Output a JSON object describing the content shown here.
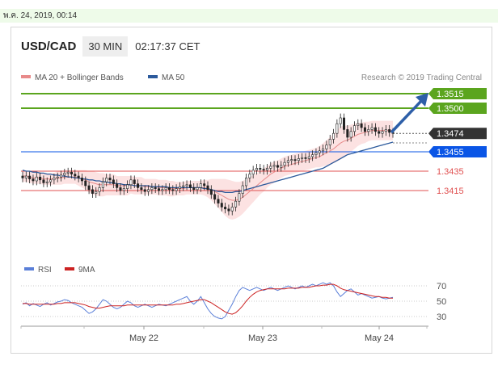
{
  "date_stamp": "พ.ค. 24, 2019, 00:14",
  "header": {
    "pair": "USD/CAD",
    "timeframe": "30 MIN",
    "time": "02:17:37 CET"
  },
  "credit": "Research © 2019 Trading Central",
  "colors": {
    "support": "#0a55e6",
    "resistance": "#5ba51e",
    "level": "#e05050",
    "last": "#333333",
    "ma20": "#e88a8a",
    "ma50": "#2c5a9c",
    "rsi": "#5a7fd8",
    "rsi_ma": "#cc2222",
    "arrow": "#2e5fa8"
  },
  "chart_data": [
    {
      "type": "candlestick",
      "title": "USD/CAD",
      "timeframe": "30 MIN",
      "legend": [
        {
          "name": "MA 20 + Bollinger Bands",
          "color": "#e88a8a"
        },
        {
          "name": "MA 50",
          "color": "#2c5a9c"
        }
      ],
      "x_ticks": [
        "May 22",
        "May 23",
        "May 24"
      ],
      "levels": [
        {
          "value": 1.3515,
          "label": "1.3515",
          "style": "resistance"
        },
        {
          "value": 1.35,
          "label": "1.3500",
          "style": "resistance"
        },
        {
          "value": 1.3474,
          "label": "1.3474",
          "style": "last"
        },
        {
          "value": 1.3455,
          "label": "1.3455",
          "style": "support"
        },
        {
          "value": 1.3435,
          "label": "1.3435",
          "style": "level"
        },
        {
          "value": 1.3415,
          "label": "1.3415",
          "style": "level"
        }
      ],
      "closes": [
        1.3428,
        1.343,
        1.3427,
        1.3425,
        1.3429,
        1.3426,
        1.3423,
        1.3424,
        1.3426,
        1.3428,
        1.3429,
        1.3431,
        1.3433,
        1.3434,
        1.3432,
        1.343,
        1.3428,
        1.3425,
        1.342,
        1.3416,
        1.3412,
        1.3414,
        1.3418,
        1.3424,
        1.3428,
        1.3426,
        1.3422,
        1.3418,
        1.3415,
        1.3417,
        1.3421,
        1.3426,
        1.3422,
        1.3418,
        1.3416,
        1.3414,
        1.3416,
        1.3418,
        1.3417,
        1.3415,
        1.3416,
        1.3418,
        1.3416,
        1.3415,
        1.3417,
        1.3419,
        1.342,
        1.3421,
        1.3418,
        1.3416,
        1.3418,
        1.3422,
        1.342,
        1.3416,
        1.3411,
        1.3406,
        1.3402,
        1.3398,
        1.3396,
        1.3394,
        1.3398,
        1.3404,
        1.3412,
        1.342,
        1.3428,
        1.3432,
        1.3436,
        1.3438,
        1.3437,
        1.3436,
        1.3438,
        1.344,
        1.3441,
        1.3439,
        1.3441,
        1.3444,
        1.3446,
        1.3447,
        1.3446,
        1.3448,
        1.3449,
        1.3448,
        1.345,
        1.3452,
        1.3454,
        1.3456,
        1.3458,
        1.3462,
        1.3468,
        1.3474,
        1.3484,
        1.349,
        1.3478,
        1.347,
        1.3476,
        1.3482,
        1.3484,
        1.348,
        1.3476,
        1.3478,
        1.348,
        1.3476,
        1.3474,
        1.3476,
        1.3478,
        1.3475,
        1.3474
      ],
      "ma20": [
        1.343,
        1.343,
        1.3429,
        1.3428,
        1.3428,
        1.3428,
        1.3427,
        1.3427,
        1.3427,
        1.3427,
        1.3428,
        1.3428,
        1.3429,
        1.3429,
        1.3429,
        1.3429,
        1.3428,
        1.3427,
        1.3426,
        1.3424,
        1.3423,
        1.3422,
        1.3421,
        1.3421,
        1.3421,
        1.3421,
        1.3421,
        1.342,
        1.342,
        1.342,
        1.342,
        1.3421,
        1.342,
        1.342,
        1.342,
        1.3419,
        1.3419,
        1.3419,
        1.3419,
        1.3418,
        1.3418,
        1.3418,
        1.3417,
        1.3417,
        1.3417,
        1.3417,
        1.3417,
        1.3418,
        1.3418,
        1.3418,
        1.3418,
        1.3418,
        1.3418,
        1.3417,
        1.3416,
        1.3414,
        1.3412,
        1.341,
        1.3408,
        1.3406,
        1.3405,
        1.3405,
        1.3406,
        1.3408,
        1.3411,
        1.3414,
        1.3417,
        1.342,
        1.3423,
        1.3426,
        1.3429,
        1.3432,
        1.3434,
        1.3436,
        1.3438,
        1.344,
        1.3441,
        1.3442,
        1.3443,
        1.3444,
        1.3445,
        1.3446,
        1.3447,
        1.3448,
        1.3449,
        1.345,
        1.3452,
        1.3454,
        1.3456,
        1.3458,
        1.3461,
        1.3464,
        1.3466,
        1.3467,
        1.3469,
        1.3471,
        1.3473,
        1.3474,
        1.3475,
        1.3476,
        1.3477,
        1.3477,
        1.3477,
        1.3477,
        1.3477,
        1.3477,
        1.3477
      ],
      "band_width": [
        0.0006,
        0.0006,
        0.0006,
        0.0006,
        0.0006,
        0.0006,
        0.0006,
        0.0006,
        0.0006,
        0.0006,
        0.0007,
        0.0007,
        0.0007,
        0.0007,
        0.0007,
        0.0007,
        0.0008,
        0.0009,
        0.001,
        0.0011,
        0.0012,
        0.0012,
        0.0012,
        0.0012,
        0.0011,
        0.0011,
        0.0011,
        0.001,
        0.001,
        0.001,
        0.001,
        0.0009,
        0.0009,
        0.0009,
        0.0009,
        0.0008,
        0.0008,
        0.0008,
        0.0008,
        0.0008,
        0.0008,
        0.0008,
        0.0008,
        0.0008,
        0.0007,
        0.0007,
        0.0007,
        0.0007,
        0.0007,
        0.0007,
        0.0007,
        0.0007,
        0.0008,
        0.0009,
        0.0011,
        0.0013,
        0.0015,
        0.0017,
        0.0019,
        0.002,
        0.002,
        0.0019,
        0.0018,
        0.0017,
        0.0016,
        0.0015,
        0.0014,
        0.0013,
        0.0012,
        0.0012,
        0.0011,
        0.0011,
        0.0011,
        0.001,
        0.001,
        0.001,
        0.001,
        0.001,
        0.001,
        0.001,
        0.001,
        0.001,
        0.001,
        0.001,
        0.001,
        0.0011,
        0.0012,
        0.0013,
        0.0014,
        0.0015,
        0.0016,
        0.0017,
        0.0016,
        0.0015,
        0.0014,
        0.0013,
        0.0012,
        0.0011,
        0.0011,
        0.001,
        0.001,
        0.001,
        0.001,
        0.001,
        0.001,
        0.001,
        0.001
      ],
      "ma50": [
        1.3436,
        1.3435,
        1.3435,
        1.3434,
        1.3434,
        1.3433,
        1.3433,
        1.3432,
        1.3432,
        1.3431,
        1.3431,
        1.343,
        1.343,
        1.3429,
        1.3429,
        1.3428,
        1.3428,
        1.3427,
        1.3427,
        1.3426,
        1.3426,
        1.3425,
        1.3425,
        1.3424,
        1.3424,
        1.3423,
        1.3423,
        1.3422,
        1.3422,
        1.3421,
        1.3421,
        1.3421,
        1.342,
        1.342,
        1.342,
        1.342,
        1.342,
        1.3419,
        1.3419,
        1.3419,
        1.3419,
        1.3419,
        1.3418,
        1.3418,
        1.3418,
        1.3418,
        1.3418,
        1.3418,
        1.3418,
        1.3418,
        1.3418,
        1.3418,
        1.3417,
        1.3417,
        1.3416,
        1.3415,
        1.3414,
        1.3414,
        1.3413,
        1.3413,
        1.3413,
        1.3414,
        1.3414,
        1.3415,
        1.3416,
        1.3417,
        1.3418,
        1.3419,
        1.342,
        1.3421,
        1.3422,
        1.3423,
        1.3424,
        1.3425,
        1.3426,
        1.3427,
        1.3428,
        1.3429,
        1.343,
        1.3431,
        1.3432,
        1.3433,
        1.3434,
        1.3435,
        1.3436,
        1.3437,
        1.3438,
        1.344,
        1.3442,
        1.3444,
        1.3446,
        1.3448,
        1.345,
        1.3452,
        1.3453,
        1.3454,
        1.3455,
        1.3456,
        1.3457,
        1.3458,
        1.3459,
        1.346,
        1.3461,
        1.3462,
        1.3463,
        1.3464,
        1.3465
      ]
    },
    {
      "type": "line",
      "legend": [
        {
          "name": "RSI",
          "color": "#5a7fd8"
        },
        {
          "name": "9MA",
          "color": "#cc2222"
        }
      ],
      "y_ticks": [
        70,
        50,
        30
      ],
      "series": [
        {
          "name": "RSI",
          "values": [
            46,
            48,
            44,
            47,
            45,
            43,
            46,
            48,
            45,
            47,
            49,
            50,
            52,
            51,
            48,
            46,
            44,
            42,
            38,
            34,
            36,
            40,
            46,
            52,
            50,
            46,
            42,
            40,
            42,
            46,
            50,
            48,
            44,
            42,
            44,
            46,
            44,
            42,
            44,
            46,
            45,
            44,
            46,
            48,
            50,
            52,
            54,
            56,
            50,
            46,
            50,
            56,
            48,
            40,
            34,
            30,
            28,
            27,
            30,
            38,
            46,
            56,
            64,
            68,
            66,
            64,
            66,
            68,
            66,
            64,
            66,
            68,
            66,
            64,
            66,
            68,
            70,
            68,
            66,
            68,
            70,
            68,
            70,
            72,
            70,
            72,
            74,
            72,
            74,
            70,
            62,
            56,
            60,
            64,
            66,
            62,
            58,
            60,
            58,
            56,
            54,
            55,
            56,
            54,
            53,
            54,
            55
          ]
        },
        {
          "name": "9MA",
          "values": [
            47,
            47,
            46,
            46,
            46,
            46,
            46,
            46,
            46,
            46,
            47,
            47,
            48,
            48,
            48,
            48,
            47,
            46,
            45,
            43,
            42,
            41,
            41,
            42,
            43,
            44,
            44,
            44,
            44,
            44,
            45,
            45,
            45,
            45,
            45,
            45,
            45,
            45,
            45,
            45,
            45,
            45,
            45,
            45,
            46,
            46,
            47,
            48,
            49,
            50,
            51,
            52,
            52,
            50,
            48,
            45,
            42,
            39,
            36,
            34,
            33,
            35,
            39,
            44,
            50,
            55,
            59,
            62,
            64,
            65,
            66,
            66,
            66,
            66,
            66,
            66,
            67,
            67,
            67,
            67,
            68,
            68,
            68,
            69,
            70,
            70,
            71,
            71,
            72,
            72,
            70,
            67,
            65,
            64,
            63,
            62,
            61,
            60,
            59,
            58,
            57,
            56,
            56,
            55,
            55,
            54,
            54
          ]
        }
      ]
    }
  ]
}
